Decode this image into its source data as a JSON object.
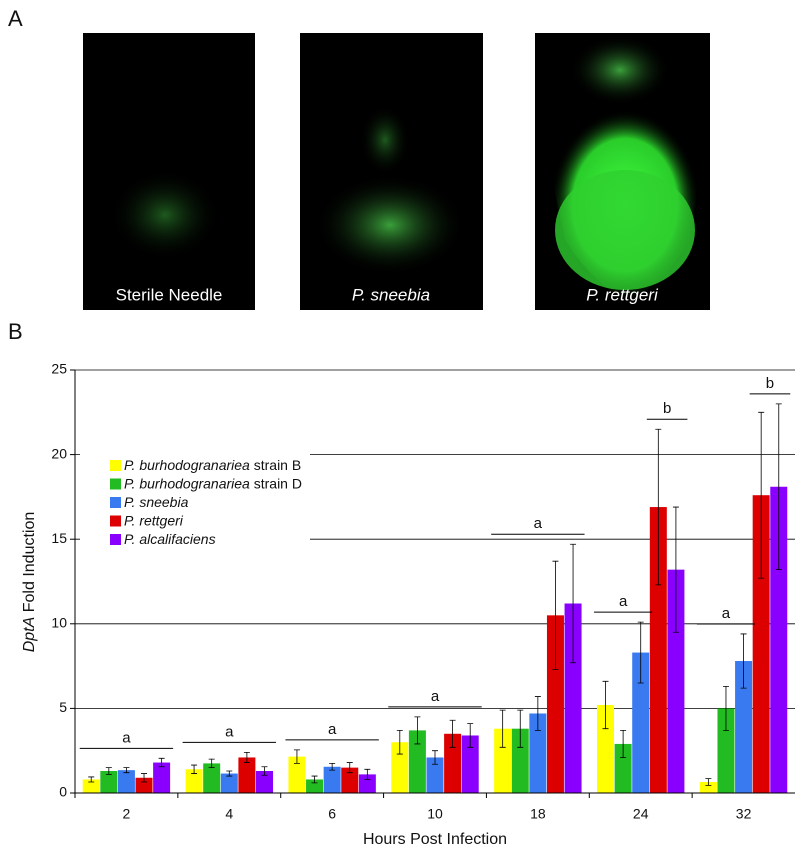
{
  "panel_a": {
    "label": "A",
    "captions": [
      "Sterile Needle",
      "P. sneebia",
      "P. rettgeri"
    ]
  },
  "chart_data": {
    "type": "bar",
    "panel_label": "B",
    "xlabel": "Hours Post Infection",
    "ylabel": "DptA Fold Induction",
    "categories": [
      "2",
      "4",
      "6",
      "10",
      "18",
      "24",
      "32"
    ],
    "ylim": [
      0,
      25
    ],
    "yticks": [
      0,
      5,
      10,
      15,
      20,
      25
    ],
    "grid": true,
    "legend": "upper left",
    "series": [
      {
        "name": "P. burhodogranariea strain B",
        "color": "#ffff00",
        "values": [
          0.8,
          1.4,
          2.15,
          3.0,
          3.8,
          5.2,
          0.65
        ],
        "errors": [
          0.15,
          0.25,
          0.4,
          0.7,
          1.1,
          1.4,
          0.2
        ]
      },
      {
        "name": "P. burhodogranariea strain D",
        "color": "#22bb22",
        "values": [
          1.3,
          1.75,
          0.8,
          3.7,
          3.8,
          2.9,
          5.0
        ],
        "errors": [
          0.2,
          0.25,
          0.2,
          0.8,
          1.1,
          0.8,
          1.3
        ]
      },
      {
        "name": "P. sneebia",
        "color": "#3a7af0",
        "values": [
          1.35,
          1.15,
          1.55,
          2.1,
          4.7,
          8.3,
          7.8
        ],
        "errors": [
          0.15,
          0.15,
          0.2,
          0.4,
          1.0,
          1.8,
          1.6
        ]
      },
      {
        "name": "P. rettgeri",
        "color": "#dd0000",
        "values": [
          0.9,
          2.1,
          1.5,
          3.5,
          10.5,
          16.9,
          17.6
        ],
        "errors": [
          0.25,
          0.3,
          0.3,
          0.8,
          3.2,
          4.6,
          4.9
        ]
      },
      {
        "name": "P. alcalifaciens",
        "color": "#8a00ff",
        "values": [
          1.8,
          1.3,
          1.1,
          3.4,
          11.2,
          13.2,
          18.1
        ],
        "errors": [
          0.25,
          0.25,
          0.3,
          0.7,
          3.5,
          3.7,
          4.9
        ]
      }
    ],
    "annotations": [
      {
        "text": "a",
        "category": 0,
        "series_from": 0,
        "series_to": 4
      },
      {
        "text": "a",
        "category": 1,
        "series_from": 0,
        "series_to": 4
      },
      {
        "text": "a",
        "category": 2,
        "series_from": 0,
        "series_to": 4
      },
      {
        "text": "a",
        "category": 3,
        "series_from": 0,
        "series_to": 4
      },
      {
        "text": "a",
        "category": 4,
        "series_from": 0,
        "series_to": 4
      },
      {
        "text": "a",
        "category": 5,
        "series_from": 0,
        "series_to": 2
      },
      {
        "text": "b",
        "category": 5,
        "series_from": 3,
        "series_to": 4
      },
      {
        "text": "a",
        "category": 6,
        "series_from": 0,
        "series_to": 2
      },
      {
        "text": "b",
        "category": 6,
        "series_from": 3,
        "series_to": 4
      }
    ]
  }
}
